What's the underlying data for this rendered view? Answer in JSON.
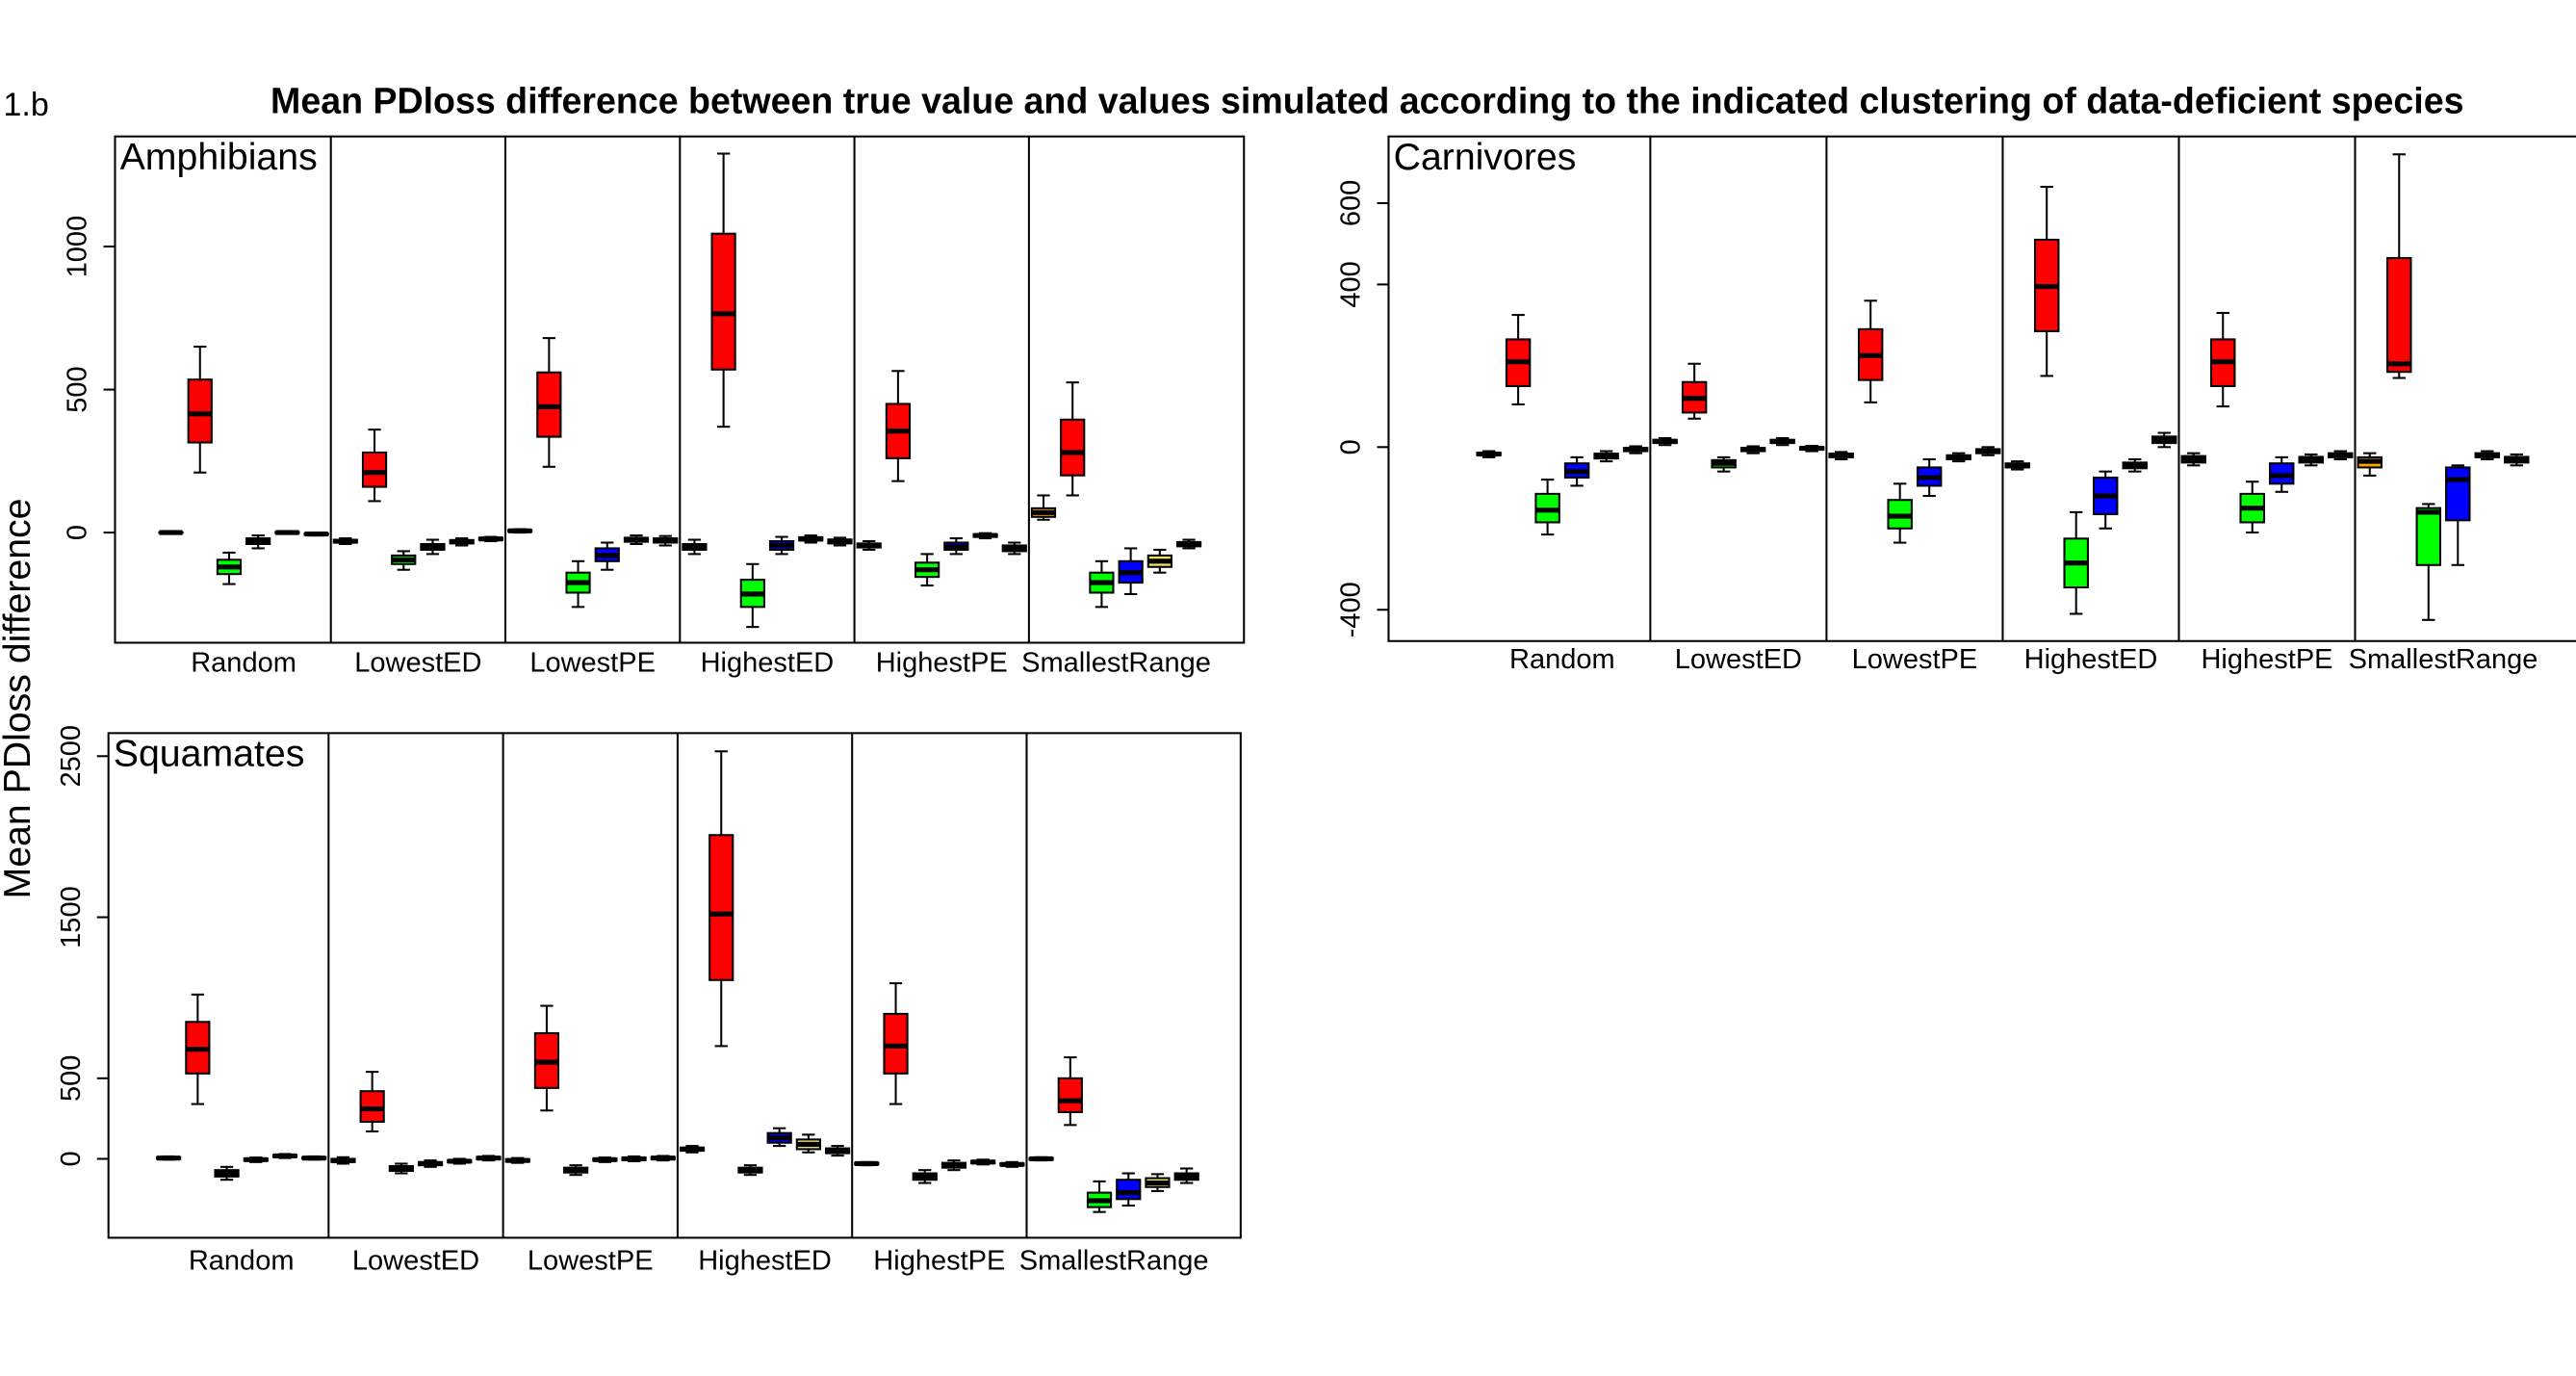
{
  "figure": {
    "label": "1.b",
    "title": "Mean PDloss difference between true value and values simulated according to the indicated clustering of data-deficient species",
    "ylabel": "Mean PDloss difference"
  },
  "chart_data": [
    {
      "type": "boxplot",
      "title": "Amphibians",
      "colors": [
        "#ffa500",
        "#ff0000",
        "#00ff00",
        "#0000ff",
        "#eedd66",
        "#555555"
      ],
      "ylim": [
        -385,
        1385
      ],
      "yticks": [
        0,
        500,
        1000
      ],
      "groups": [
        {
          "label": "Random",
          "boxes": [
            [
              -3,
              -1,
              0,
              1,
              3
            ],
            [
              210,
              315,
              415,
              535,
              650
            ],
            [
              -180,
              -145,
              -120,
              -95,
              -70
            ],
            [
              -55,
              -40,
              -30,
              -20,
              -10
            ],
            [
              -4,
              -2,
              0,
              2,
              4
            ],
            [
              -10,
              -8,
              -5,
              -3,
              -1
            ]
          ]
        },
        {
          "label": "LowestED",
          "boxes": [
            [
              -40,
              -35,
              -30,
              -25,
              -20
            ],
            [
              110,
              160,
              210,
              280,
              360
            ],
            [
              -130,
              -110,
              -95,
              -80,
              -65
            ],
            [
              -75,
              -60,
              -50,
              -40,
              -25
            ],
            [
              -45,
              -38,
              -32,
              -26,
              -20
            ],
            [
              -30,
              -26,
              -22,
              -18,
              -15
            ]
          ]
        },
        {
          "label": "LowestPE",
          "boxes": [
            [
              0,
              3,
              6,
              9,
              12
            ],
            [
              230,
              335,
              440,
              560,
              680
            ],
            [
              -260,
              -210,
              -175,
              -140,
              -100
            ],
            [
              -130,
              -100,
              -80,
              -55,
              -35
            ],
            [
              -40,
              -32,
              -25,
              -18,
              -10
            ],
            [
              -45,
              -35,
              -28,
              -20,
              -12
            ]
          ]
        },
        {
          "label": "HighestED",
          "boxes": [
            [
              -75,
              -60,
              -50,
              -40,
              -25
            ],
            [
              370,
              570,
              765,
              1045,
              1325
            ],
            [
              -330,
              -260,
              -215,
              -165,
              -110
            ],
            [
              -75,
              -60,
              -45,
              -30,
              -15
            ],
            [
              -35,
              -28,
              -22,
              -16,
              -10
            ],
            [
              -45,
              -38,
              -30,
              -24,
              -18
            ]
          ]
        },
        {
          "label": "HighestPE",
          "boxes": [
            [
              -60,
              -52,
              -45,
              -38,
              -30
            ],
            [
              180,
              260,
              355,
              450,
              565
            ],
            [
              -185,
              -155,
              -130,
              -105,
              -75
            ],
            [
              -75,
              -60,
              -50,
              -35,
              -20
            ],
            [
              -20,
              -15,
              -10,
              -6,
              -2
            ],
            [
              -75,
              -65,
              -55,
              -45,
              -35
            ]
          ]
        },
        {
          "label": "SmallestRange",
          "boxes": [
            [
              45,
              55,
              70,
              85,
              130
            ],
            [
              130,
              200,
              280,
              395,
              525
            ],
            [
              -260,
              -210,
              -175,
              -140,
              -100
            ],
            [
              -215,
              -175,
              -140,
              -100,
              -55
            ],
            [
              -140,
              -120,
              -100,
              -80,
              -60
            ],
            [
              -55,
              -48,
              -40,
              -33,
              -25
            ]
          ]
        }
      ]
    },
    {
      "type": "boxplot",
      "title": "Carnivores",
      "colors": [
        "#ffa500",
        "#ff0000",
        "#00ff00",
        "#0000ff",
        "#eedd66",
        "#555555"
      ],
      "ylim": [
        -477,
        764
      ],
      "yticks": [
        -400,
        0,
        400,
        600
      ],
      "groups": [
        {
          "label": "Random",
          "boxes": [
            [
              -25,
              -20,
              -17,
              -14,
              -10
            ],
            [
              105,
              150,
              210,
              265,
              325
            ],
            [
              -215,
              -185,
              -155,
              -115,
              -80
            ],
            [
              -95,
              -75,
              -60,
              -40,
              -25
            ],
            [
              -35,
              -28,
              -22,
              -16,
              -10
            ],
            [
              -15,
              -10,
              -6,
              -2,
              2
            ]
          ]
        },
        {
          "label": "LowestED",
          "boxes": [
            [
              5,
              10,
              14,
              18,
              22
            ],
            [
              70,
              85,
              120,
              160,
              205
            ],
            [
              -60,
              -50,
              -40,
              -32,
              -25
            ],
            [
              -15,
              -10,
              -6,
              -2,
              2
            ],
            [
              5,
              10,
              14,
              18,
              22
            ],
            [
              -10,
              -6,
              -3,
              0,
              3
            ]
          ]
        },
        {
          "label": "LowestPE",
          "boxes": [
            [
              -30,
              -25,
              -20,
              -16,
              -12
            ],
            [
              110,
              165,
              225,
              290,
              360
            ],
            [
              -235,
              -200,
              -170,
              -130,
              -90
            ],
            [
              -120,
              -95,
              -75,
              -50,
              -30
            ],
            [
              -35,
              -30,
              -25,
              -20,
              -15
            ],
            [
              -20,
              -15,
              -10,
              -5,
              0
            ]
          ]
        },
        {
          "label": "HighestED",
          "boxes": [
            [
              -55,
              -50,
              -45,
              -40,
              -35
            ],
            [
              175,
              285,
              395,
              510,
              640
            ],
            [
              -410,
              -345,
              -285,
              -225,
              -160
            ],
            [
              -200,
              -165,
              -120,
              -75,
              -60
            ],
            [
              -60,
              -52,
              -45,
              -38,
              -30
            ],
            [
              0,
              10,
              18,
              26,
              35
            ]
          ]
        },
        {
          "label": "HighestPE",
          "boxes": [
            [
              -45,
              -38,
              -30,
              -22,
              -15
            ],
            [
              100,
              150,
              210,
              265,
              330
            ],
            [
              -210,
              -185,
              -150,
              -115,
              -85
            ],
            [
              -110,
              -90,
              -70,
              -40,
              -25
            ],
            [
              -45,
              -38,
              -30,
              -24,
              -18
            ],
            [
              -30,
              -25,
              -20,
              -15,
              -10
            ]
          ]
        },
        {
          "label": "SmallestRange",
          "boxes": [
            [
              -70,
              -50,
              -35,
              -25,
              -15
            ],
            [
              170,
              185,
              205,
              465,
              720
            ],
            [
              -425,
              -290,
              -160,
              -150,
              -140
            ],
            [
              -290,
              -180,
              -80,
              -50,
              -45
            ],
            [
              -30,
              -25,
              -20,
              -15,
              -10
            ],
            [
              -45,
              -38,
              -30,
              -24,
              -18
            ]
          ]
        }
      ]
    },
    {
      "type": "boxplot",
      "title": "Squamates",
      "colors": [
        "#ffa500",
        "#ff0000",
        "#00ff00",
        "#0000ff",
        "#eedd66",
        "#555555"
      ],
      "ylim": [
        -490,
        2643
      ],
      "yticks": [
        0,
        500,
        1500,
        2500
      ],
      "groups": [
        {
          "label": "Random",
          "boxes": [
            [
              -5,
              0,
              5,
              10,
              15
            ],
            [
              340,
              530,
              680,
              850,
              1020
            ],
            [
              -130,
              -110,
              -90,
              -70,
              -50
            ],
            [
              -20,
              -12,
              -5,
              2,
              8
            ],
            [
              5,
              12,
              18,
              24,
              30
            ],
            [
              -5,
              0,
              5,
              10,
              15
            ]
          ]
        },
        {
          "label": "LowestED",
          "boxes": [
            [
              -30,
              -20,
              -10,
              0,
              10
            ],
            [
              170,
              230,
              310,
              420,
              540
            ],
            [
              -90,
              -75,
              -60,
              -45,
              -30
            ],
            [
              -50,
              -40,
              -30,
              -20,
              -10
            ],
            [
              -30,
              -22,
              -15,
              -8,
              0
            ],
            [
              -10,
              -3,
              5,
              12,
              18
            ]
          ]
        },
        {
          "label": "LowestPE",
          "boxes": [
            [
              -25,
              -18,
              -10,
              -2,
              5
            ],
            [
              300,
              440,
              600,
              780,
              950
            ],
            [
              -100,
              -85,
              -70,
              -55,
              -40
            ],
            [
              -20,
              -12,
              -5,
              2,
              8
            ],
            [
              -15,
              -8,
              0,
              8,
              15
            ],
            [
              -10,
              -3,
              5,
              12,
              18
            ]
          ]
        },
        {
          "label": "HighestED",
          "boxes": [
            [
              40,
              50,
              60,
              70,
              80
            ],
            [
              700,
              1110,
              1520,
              2010,
              2530
            ],
            [
              -100,
              -85,
              -70,
              -55,
              -40
            ],
            [
              80,
              100,
              130,
              160,
              190
            ],
            [
              40,
              60,
              90,
              120,
              150
            ],
            [
              20,
              35,
              50,
              65,
              80
            ]
          ]
        },
        {
          "label": "HighestPE",
          "boxes": [
            [
              -40,
              -35,
              -30,
              -25,
              -20
            ],
            [
              340,
              530,
              700,
              900,
              1090
            ],
            [
              -150,
              -130,
              -110,
              -90,
              -70
            ],
            [
              -70,
              -55,
              -40,
              -25,
              -10
            ],
            [
              -35,
              -28,
              -20,
              -12,
              -5
            ],
            [
              -50,
              -42,
              -35,
              -28,
              -20
            ]
          ]
        },
        {
          "label": "SmallestRange",
          "boxes": [
            [
              -10,
              -5,
              0,
              5,
              10
            ],
            [
              210,
              290,
              360,
              500,
              630
            ],
            [
              -330,
              -300,
              -260,
              -210,
              -140
            ],
            [
              -290,
              -250,
              -210,
              -130,
              -90
            ],
            [
              -200,
              -175,
              -150,
              -120,
              -95
            ],
            [
              -150,
              -130,
              -110,
              -90,
              -60
            ]
          ]
        }
      ]
    }
  ]
}
